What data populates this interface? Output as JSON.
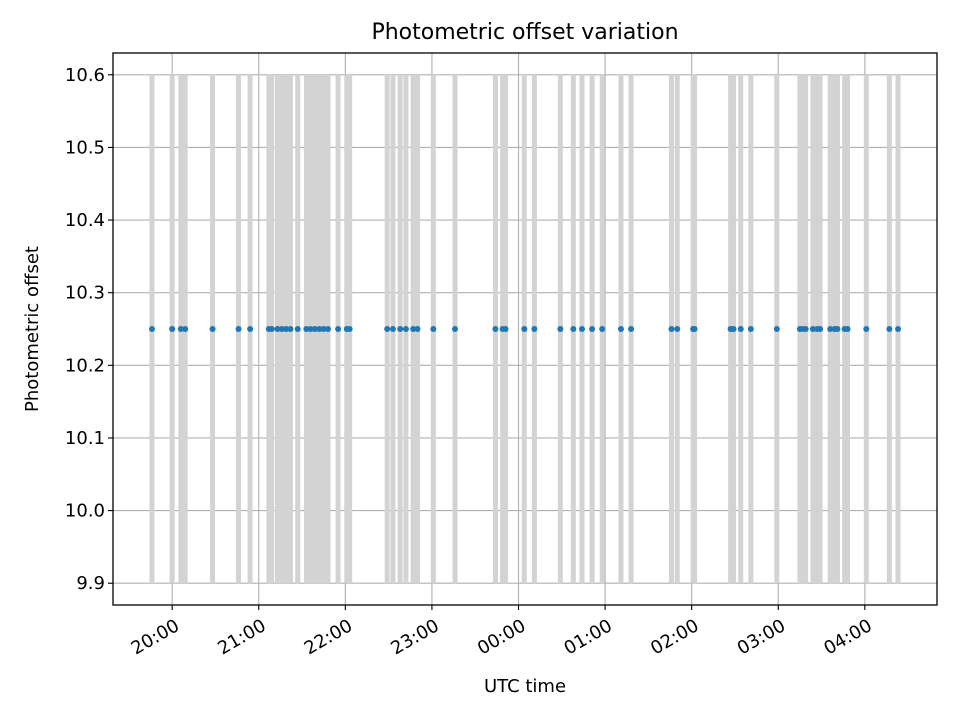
{
  "chart_data": {
    "type": "scatter",
    "title": "Photometric offset variation",
    "xlabel": "UTC time",
    "ylabel": "Photometric offset",
    "x_axis": {
      "type": "time",
      "range": [
        "2024-01-01T19:19:00",
        "2024-01-02T04:50:00"
      ],
      "tick_labels": [
        "20:00",
        "21:00",
        "22:00",
        "23:00",
        "00:00",
        "01:00",
        "02:00",
        "03:00",
        "04:00"
      ],
      "tick_times": [
        "2024-01-01T20:00",
        "2024-01-01T21:00",
        "2024-01-01T22:00",
        "2024-01-01T23:00",
        "2024-01-02T00:00",
        "2024-01-02T01:00",
        "2024-01-02T02:00",
        "2024-01-02T03:00",
        "2024-01-02T04:00"
      ],
      "tick_rotation": 30
    },
    "y_axis": {
      "range": [
        9.87,
        10.63
      ],
      "ticks": [
        9.9,
        10.0,
        10.1,
        10.2,
        10.3,
        10.4,
        10.5,
        10.6
      ],
      "tick_labels": [
        "9.9",
        "10.0",
        "10.1",
        "10.2",
        "10.3",
        "10.4",
        "10.5",
        "10.6"
      ]
    },
    "grid": true,
    "bars": {
      "description": "error bars",
      "color": "#d3d3d3",
      "ymin": 9.9,
      "ymax": 10.6
    },
    "points": {
      "color": "#1f77b4",
      "y": 10.25,
      "times": [
        "2024-01-01T19:46",
        "2024-01-01T20:00",
        "2024-01-01T20:06",
        "2024-01-01T20:09",
        "2024-01-01T20:28",
        "2024-01-01T20:46",
        "2024-01-01T20:54",
        "2024-01-01T21:07",
        "2024-01-01T21:09",
        "2024-01-01T21:13",
        "2024-01-01T21:16",
        "2024-01-01T21:19",
        "2024-01-01T21:22",
        "2024-01-01T21:27",
        "2024-01-01T21:33",
        "2024-01-01T21:36",
        "2024-01-01T21:39",
        "2024-01-01T21:42",
        "2024-01-01T21:45",
        "2024-01-01T21:48",
        "2024-01-01T21:55",
        "2024-01-01T22:01",
        "2024-01-01T22:03",
        "2024-01-01T22:29",
        "2024-01-01T22:33",
        "2024-01-01T22:38",
        "2024-01-01T22:42",
        "2024-01-01T22:47",
        "2024-01-01T22:50",
        "2024-01-01T23:01",
        "2024-01-01T23:16",
        "2024-01-01T23:44",
        "2024-01-01T23:49",
        "2024-01-01T23:51",
        "2024-01-02T00:04",
        "2024-01-02T00:11",
        "2024-01-02T00:29",
        "2024-01-02T00:38",
        "2024-01-02T00:44",
        "2024-01-02T00:51",
        "2024-01-02T00:58",
        "2024-01-02T01:11",
        "2024-01-02T01:18",
        "2024-01-02T01:46",
        "2024-01-02T01:50",
        "2024-01-02T02:01",
        "2024-01-02T02:02",
        "2024-01-02T02:27",
        "2024-01-02T02:29",
        "2024-01-02T02:34",
        "2024-01-02T02:41",
        "2024-01-02T02:59",
        "2024-01-02T03:15",
        "2024-01-02T03:17",
        "2024-01-02T03:19",
        "2024-01-02T03:24",
        "2024-01-02T03:27",
        "2024-01-02T03:29",
        "2024-01-02T03:36",
        "2024-01-02T03:39",
        "2024-01-02T03:41",
        "2024-01-02T03:46",
        "2024-01-02T03:48",
        "2024-01-02T04:01",
        "2024-01-02T04:17",
        "2024-01-02T04:23"
      ]
    }
  }
}
